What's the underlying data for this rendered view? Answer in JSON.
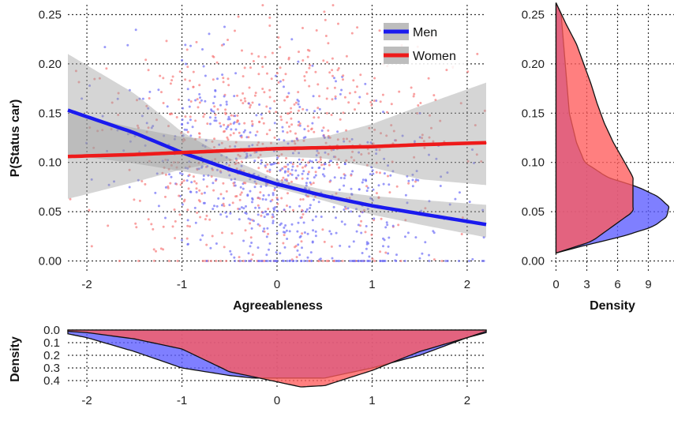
{
  "chart_data": [
    {
      "id": "main",
      "type": "scatter",
      "xlabel": "Agreeableness",
      "ylabel": "P(Status car)",
      "xlim": [
        -2.2,
        2.2
      ],
      "ylim": [
        -0.01,
        0.26
      ],
      "xticks": [
        -2,
        -1,
        0,
        1,
        2
      ],
      "xtick_labels": [
        "-2",
        "-1",
        "0",
        "1",
        "2"
      ],
      "yticks": [
        0.0,
        0.05,
        0.1,
        0.15,
        0.2,
        0.25
      ],
      "ytick_labels": [
        "0.00",
        "0.05",
        "0.10",
        "0.15",
        "0.20",
        "0.25"
      ],
      "grid": true,
      "legend_position": "top-right",
      "series": [
        {
          "name": "Men",
          "color": "#1a1aee",
          "x": [
            -2.2,
            -1.5,
            -1.0,
            -0.5,
            0.0,
            0.5,
            1.0,
            1.5,
            2.2
          ],
          "fit": [
            0.153,
            0.13,
            0.11,
            0.093,
            0.078,
            0.066,
            0.056,
            0.048,
            0.037
          ],
          "ci_lower": [
            0.108,
            0.099,
            0.091,
            0.083,
            0.074,
            0.061,
            0.047,
            0.037,
            0.024
          ],
          "ci_upper": [
            0.21,
            0.17,
            0.131,
            0.104,
            0.083,
            0.072,
            0.066,
            0.062,
            0.057
          ]
        },
        {
          "name": "Women",
          "color": "#ee1a1a",
          "x": [
            -2.2,
            -1.5,
            -1.0,
            -0.5,
            0.0,
            0.5,
            1.0,
            1.5,
            2.2
          ],
          "fit": [
            0.106,
            0.108,
            0.11,
            0.112,
            0.114,
            0.115,
            0.116,
            0.118,
            0.12
          ],
          "ci_lower": [
            0.063,
            0.08,
            0.093,
            0.102,
            0.106,
            0.104,
            0.095,
            0.083,
            0.077
          ],
          "ci_upper": [
            0.15,
            0.135,
            0.126,
            0.122,
            0.121,
            0.126,
            0.139,
            0.157,
            0.181
          ]
        }
      ],
      "points_per_series": 650
    },
    {
      "id": "right-density",
      "type": "area",
      "xlabel": "Density",
      "ylabel": "",
      "xlim": [
        -0.5,
        11.5
      ],
      "ylim": [
        -0.01,
        0.26
      ],
      "xticks": [
        0,
        3,
        6,
        9
      ],
      "xtick_labels": [
        "0",
        "3",
        "6",
        "9"
      ],
      "yticks": [
        0.0,
        0.05,
        0.1,
        0.15,
        0.2,
        0.25
      ],
      "ytick_labels": [
        "0.00",
        "0.05",
        "0.10",
        "0.15",
        "0.20",
        "0.25"
      ],
      "grid": true,
      "series": [
        {
          "name": "Men",
          "color": "#5b5bff",
          "y": [
            0.008,
            0.015,
            0.025,
            0.035,
            0.045,
            0.055,
            0.065,
            0.075,
            0.085,
            0.1,
            0.12,
            0.15,
            0.2,
            0.25,
            0.262
          ],
          "density": [
            0.0,
            2.5,
            6.5,
            9.5,
            10.8,
            11.0,
            10.0,
            8.0,
            5.0,
            2.8,
            2.0,
            1.3,
            0.9,
            0.5,
            0.0
          ]
        },
        {
          "name": "Women",
          "color": "#ff5b5b",
          "y": [
            0.008,
            0.02,
            0.05,
            0.085,
            0.1,
            0.12,
            0.14,
            0.16,
            0.18,
            0.2,
            0.22,
            0.24,
            0.262
          ],
          "density": [
            0.0,
            3.5,
            7.5,
            7.5,
            6.7,
            5.6,
            4.7,
            4.0,
            3.4,
            2.7,
            2.0,
            1.0,
            0.0
          ]
        }
      ]
    },
    {
      "id": "bottom-density",
      "type": "area",
      "xlabel": "",
      "ylabel": "Density",
      "xlim": [
        -2.2,
        2.2
      ],
      "ylim": [
        0.0,
        0.45
      ],
      "y_reversed": true,
      "xticks": [
        -2,
        -1,
        0,
        1,
        2
      ],
      "xtick_labels": [
        "-2",
        "-1",
        "0",
        "1",
        "2"
      ],
      "yticks": [
        0.0,
        0.1,
        0.2,
        0.3,
        0.4
      ],
      "ytick_labels": [
        "0.0",
        "0.1",
        "0.2",
        "0.3",
        "0.4"
      ],
      "grid": true,
      "series": [
        {
          "name": "Men",
          "color": "#5b5bff",
          "x": [
            -2.2,
            -2.0,
            -1.5,
            -1.0,
            -0.5,
            -0.25,
            0.0,
            0.5,
            1.0,
            1.5,
            2.0,
            2.2
          ],
          "density": [
            0.03,
            0.06,
            0.17,
            0.3,
            0.36,
            0.38,
            0.38,
            0.38,
            0.3,
            0.2,
            0.06,
            0.02
          ]
        },
        {
          "name": "Women",
          "color": "#ff5b5b",
          "x": [
            -2.2,
            -2.0,
            -1.5,
            -1.0,
            -0.5,
            0.0,
            0.25,
            0.5,
            1.0,
            1.5,
            2.0,
            2.2
          ],
          "density": [
            0.01,
            0.02,
            0.07,
            0.15,
            0.33,
            0.41,
            0.45,
            0.44,
            0.32,
            0.17,
            0.06,
            0.01
          ]
        }
      ]
    }
  ]
}
